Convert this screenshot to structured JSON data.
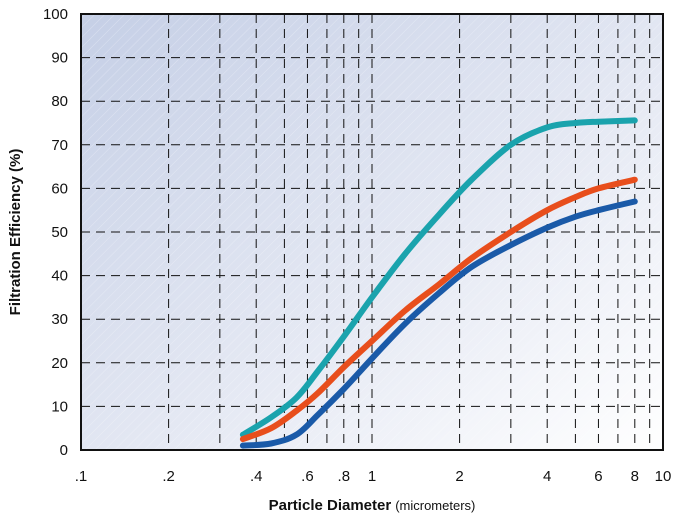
{
  "chart_data": {
    "type": "line",
    "title": "",
    "xlabel": "Particle Diameter",
    "xlabel_unit": "(micrometers)",
    "ylabel": "Filtration Efficiency  (%)",
    "x_scale": "log",
    "xlim": [
      0.1,
      10
    ],
    "ylim": [
      0,
      100
    ],
    "x_tick_values": [
      0.1,
      0.2,
      0.4,
      0.6,
      0.8,
      1,
      2,
      4,
      6,
      8,
      10
    ],
    "x_tick_labels": [
      ".1",
      ".2",
      ".4",
      ".6",
      ".8",
      "1",
      "2",
      "4",
      "6",
      "8",
      "10"
    ],
    "x_grid": [
      0.1,
      0.2,
      0.3,
      0.4,
      0.5,
      0.6,
      0.7,
      0.8,
      0.9,
      1,
      2,
      3,
      4,
      5,
      6,
      7,
      8,
      9,
      10
    ],
    "y_ticks": [
      0,
      10,
      20,
      30,
      40,
      50,
      60,
      70,
      80,
      90,
      100
    ],
    "grid": true,
    "legend": "none",
    "series": [
      {
        "color": "#1aa3ad",
        "x": [
          0.36,
          0.45,
          0.55,
          0.65,
          0.8,
          1.0,
          1.3,
          1.7,
          2.2,
          3.0,
          4.0,
          5.0,
          6.0,
          8.0
        ],
        "values": [
          3.5,
          7.5,
          12,
          18,
          26,
          35,
          45,
          54,
          62,
          70,
          74,
          75,
          75.3,
          75.6
        ]
      },
      {
        "color": "#e84e1c",
        "x": [
          0.36,
          0.45,
          0.55,
          0.65,
          0.8,
          1.0,
          1.3,
          1.7,
          2.2,
          3.0,
          4.0,
          5.0,
          6.0,
          8.0
        ],
        "values": [
          2.5,
          5,
          9,
          13,
          19,
          25,
          32,
          38,
          44,
          50,
          55,
          58,
          60,
          62
        ]
      },
      {
        "color": "#1a5aa8",
        "x": [
          0.36,
          0.45,
          0.55,
          0.65,
          0.8,
          1.0,
          1.3,
          1.7,
          2.2,
          3.0,
          4.0,
          5.0,
          6.0,
          8.0
        ],
        "values": [
          1,
          1.5,
          3.5,
          8,
          14,
          21,
          29,
          36,
          42,
          47,
          51,
          53.5,
          55,
          57
        ]
      }
    ]
  }
}
